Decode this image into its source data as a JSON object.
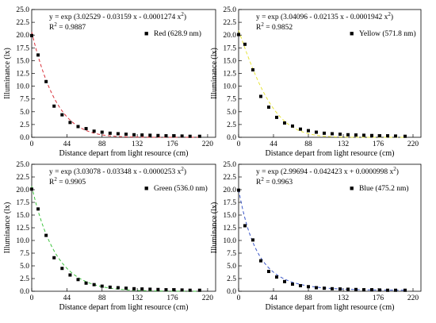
{
  "chart_data": [
    {
      "type": "scatter",
      "title": "",
      "xlabel": "Distance depart from light resource (cm)",
      "ylabel": "Illuminance (lx)",
      "xlim": [
        0,
        230
      ],
      "ylim": [
        0,
        25.0
      ],
      "xticks": [
        0,
        44,
        88,
        132,
        176,
        220
      ],
      "yticks": [
        "0.0",
        "2.5",
        "5.0",
        "7.5",
        "10.0",
        "12.5",
        "15.0",
        "17.5",
        "20.0",
        "22.5",
        "25.0"
      ],
      "equation": "y = exp (3.02529 - 0.03159 x - 0.0001274 x",
      "equation_sup": "2",
      "equation_tail": ")",
      "r2_label": "R",
      "r2_value": " = 0.9887",
      "legend": {
        "position": "top-right",
        "marker": "■",
        "label": "Red (628.9 nm)"
      },
      "fit_color": "#d9303a",
      "fit": {
        "a": 3.02529,
        "b": -0.03159,
        "c": -0.0001274
      },
      "x": [
        0,
        8,
        18,
        28,
        38,
        48,
        58,
        68,
        78,
        88,
        98,
        108,
        118,
        128,
        138,
        148,
        158,
        168,
        178,
        188,
        198,
        210
      ],
      "y": [
        19.9,
        16.1,
        10.9,
        6.1,
        4.4,
        2.9,
        2.1,
        1.7,
        1.2,
        1.0,
        0.8,
        0.7,
        0.6,
        0.5,
        0.45,
        0.4,
        0.35,
        0.3,
        0.3,
        0.25,
        0.2,
        0.2
      ]
    },
    {
      "type": "scatter",
      "title": "",
      "xlabel": "Distance depart from light resource (cm)",
      "ylabel": "Illuminance (lx)",
      "xlim": [
        0,
        230
      ],
      "ylim": [
        0,
        25.0
      ],
      "xticks": [
        0,
        44,
        88,
        132,
        176,
        220
      ],
      "yticks": [
        "0.0",
        "2.5",
        "5.0",
        "7.5",
        "10.0",
        "12.5",
        "15.0",
        "17.5",
        "20.0",
        "22.5",
        "25.0"
      ],
      "equation": "y = exp (3.04096 - 0.02135 x - 0.0001942 x",
      "equation_sup": "2",
      "equation_tail": ")",
      "r2_label": "R",
      "r2_value": " = 0.9852",
      "legend": {
        "position": "top-right",
        "marker": "■",
        "label": "Yellow (571.8 nm)"
      },
      "fit_color": "#e6e43a",
      "fit": {
        "a": 3.04096,
        "b": -0.02135,
        "c": -0.0001942
      },
      "x": [
        0,
        8,
        18,
        28,
        38,
        48,
        58,
        68,
        78,
        88,
        98,
        108,
        118,
        128,
        138,
        148,
        158,
        168,
        178,
        188,
        198,
        210
      ],
      "y": [
        20.1,
        18.2,
        13.2,
        8.0,
        5.9,
        3.9,
        2.8,
        2.2,
        1.6,
        1.3,
        1.0,
        0.8,
        0.7,
        0.6,
        0.5,
        0.45,
        0.4,
        0.35,
        0.3,
        0.3,
        0.25,
        0.2
      ]
    },
    {
      "type": "scatter",
      "title": "",
      "xlabel": "Distance depart from light resource (cm)",
      "ylabel": "Illuminance (lx)",
      "xlim": [
        0,
        230
      ],
      "ylim": [
        0,
        25.0
      ],
      "xticks": [
        0,
        44,
        88,
        132,
        176,
        220
      ],
      "yticks": [
        "0.0",
        "2.5",
        "5.0",
        "7.5",
        "10.0",
        "12.5",
        "15.0",
        "17.5",
        "20.0",
        "22.5",
        "25.0"
      ],
      "equation": "y = exp (3.03078 - 0.03348 x - 0.0000253 x",
      "equation_sup": "2",
      "equation_tail": ")",
      "r2_label": "R",
      "r2_value": " = 0.9905",
      "legend": {
        "position": "top-right",
        "marker": "■",
        "label": "Green (536.0 nm)"
      },
      "fit_color": "#3ec43e",
      "fit": {
        "a": 3.03078,
        "b": -0.03348,
        "c": -2.53e-05
      },
      "x": [
        0,
        8,
        18,
        28,
        38,
        48,
        58,
        68,
        78,
        88,
        98,
        108,
        118,
        128,
        138,
        148,
        158,
        168,
        178,
        188,
        198,
        210
      ],
      "y": [
        20.1,
        16.2,
        11.0,
        6.6,
        4.5,
        3.2,
        2.3,
        1.6,
        1.3,
        1.0,
        0.8,
        0.7,
        0.6,
        0.5,
        0.45,
        0.4,
        0.35,
        0.3,
        0.3,
        0.25,
        0.2,
        0.2
      ]
    },
    {
      "type": "scatter",
      "title": "",
      "xlabel": "Distance depart from light resource (cm)",
      "ylabel": "Illuminance (lx)",
      "xlim": [
        0,
        230
      ],
      "ylim": [
        0,
        25.0
      ],
      "xticks": [
        0,
        44,
        88,
        132,
        176,
        220
      ],
      "yticks": [
        "0.0",
        "2.5",
        "5.0",
        "7.5",
        "10.0",
        "12.5",
        "15.0",
        "17.5",
        "20.0",
        "22.5",
        "25.0"
      ],
      "equation": "y = exp (2.99694 - 0.042423 x + 0.0000998 x",
      "equation_sup": "2",
      "equation_tail": ")",
      "r2_label": "R",
      "r2_value": " = 0.9963",
      "legend": {
        "position": "top-right",
        "marker": "■",
        "label": "Blue (475.2 nm)"
      },
      "fit_color": "#3a56c8",
      "fit": {
        "a": 2.99694,
        "b": -0.042423,
        "c": 9.98e-05
      },
      "x": [
        0,
        8,
        18,
        28,
        38,
        48,
        58,
        68,
        78,
        88,
        98,
        108,
        118,
        128,
        138,
        148,
        158,
        168,
        178,
        188,
        198,
        210
      ],
      "y": [
        19.9,
        12.9,
        10.1,
        6.0,
        3.9,
        2.8,
        1.9,
        1.4,
        1.1,
        0.9,
        0.7,
        0.6,
        0.5,
        0.45,
        0.4,
        0.35,
        0.3,
        0.3,
        0.25,
        0.2,
        0.2,
        0.2
      ]
    }
  ]
}
